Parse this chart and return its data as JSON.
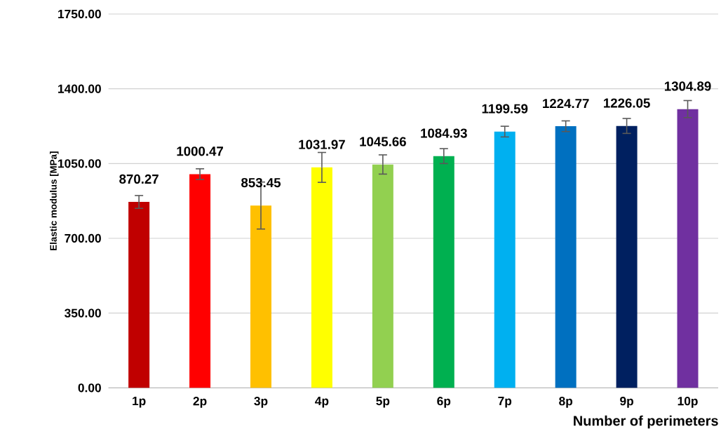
{
  "chart_data": {
    "type": "bar",
    "ylabel": "Elastic modulus [MPa]",
    "xlabel": "Number of perimeters",
    "categories": [
      "1p",
      "2p",
      "3p",
      "4p",
      "5p",
      "6p",
      "7p",
      "8p",
      "9p",
      "10p"
    ],
    "values": [
      870.27,
      1000.47,
      853.45,
      1031.97,
      1045.66,
      1084.93,
      1199.59,
      1224.77,
      1226.05,
      1304.89
    ],
    "errors": [
      30,
      25,
      110,
      70,
      45,
      35,
      25,
      25,
      35,
      40
    ],
    "colors": [
      "#c00000",
      "#ff0000",
      "#ffc000",
      "#ffff00",
      "#92d050",
      "#00b050",
      "#00b0f0",
      "#0070c0",
      "#002060",
      "#7030a0"
    ],
    "data_labels": true,
    "ylim": [
      0,
      1750
    ],
    "yticks": [
      {
        "value": 0,
        "label": "0.00"
      },
      {
        "value": 350,
        "label": "350.00"
      },
      {
        "value": 700,
        "label": "700.00"
      },
      {
        "value": 1050,
        "label": "1050.00"
      },
      {
        "value": 1400,
        "label": "1400.00"
      },
      {
        "value": 1750,
        "label": "1750.00"
      }
    ],
    "grid": "y"
  }
}
